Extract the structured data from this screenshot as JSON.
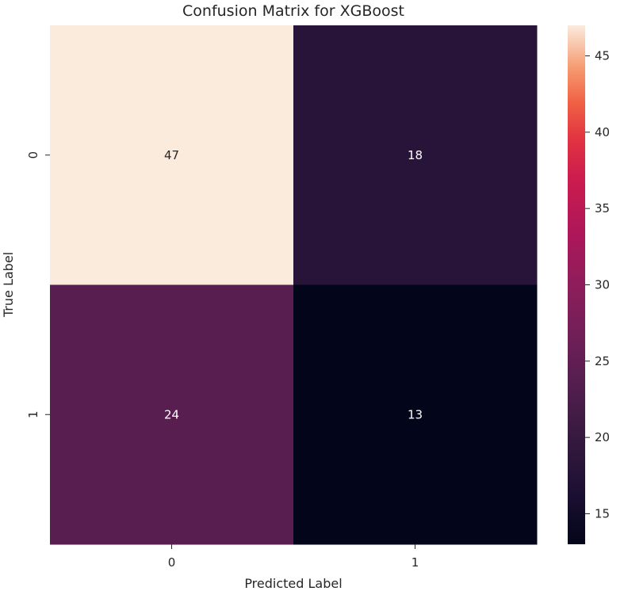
{
  "chart_data": {
    "type": "heatmap",
    "title": "Confusion Matrix for XGBoost",
    "xlabel": "Predicted Label",
    "ylabel": "True Label",
    "x_categories": [
      "0",
      "1"
    ],
    "y_categories": [
      "0",
      "1"
    ],
    "values": [
      [
        47,
        18
      ],
      [
        24,
        13
      ]
    ],
    "colormap": "rocket",
    "color_range": [
      13,
      47
    ],
    "colorbar_ticks": [
      "15",
      "20",
      "25",
      "30",
      "35",
      "40",
      "45"
    ],
    "annotations": true,
    "grid": false
  }
}
